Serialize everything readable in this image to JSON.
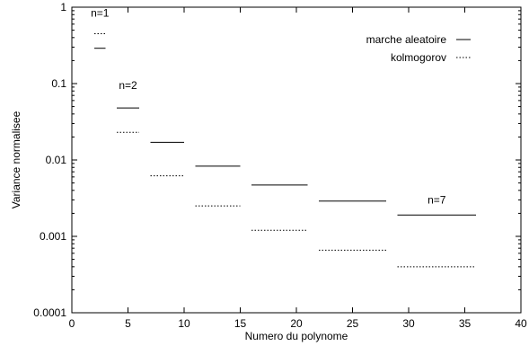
{
  "chart_data": {
    "type": "line",
    "xlabel": "Numero du polynome",
    "ylabel": "Variance normalisee",
    "xlim": [
      0,
      40
    ],
    "ylim": [
      0.0001,
      1
    ],
    "yscale": "log",
    "grid": false,
    "legend_position": "top-right",
    "x_ticks": [
      0,
      5,
      10,
      15,
      20,
      25,
      30,
      35,
      40
    ],
    "x_tick_labels": [
      "0",
      "5",
      "10",
      "15",
      "20",
      "25",
      "30",
      "35",
      "40"
    ],
    "y_ticks": [
      0.0001,
      0.001,
      0.01,
      0.1,
      1
    ],
    "y_tick_labels": [
      "0.0001",
      "0.001",
      "0.01",
      "0.1",
      "1"
    ],
    "series": [
      {
        "name": "marche aleatoire",
        "style": "solid",
        "segments": [
          {
            "x": [
              2,
              3
            ],
            "y": 0.29
          },
          {
            "x": [
              4,
              6
            ],
            "y": 0.048
          },
          {
            "x": [
              7,
              10
            ],
            "y": 0.017
          },
          {
            "x": [
              11,
              15
            ],
            "y": 0.0083
          },
          {
            "x": [
              16,
              21
            ],
            "y": 0.0047
          },
          {
            "x": [
              22,
              28
            ],
            "y": 0.0029
          },
          {
            "x": [
              29,
              36
            ],
            "y": 0.0019
          }
        ]
      },
      {
        "name": "kolmogorov",
        "style": "dotted",
        "segments": [
          {
            "x": [
              2,
              3
            ],
            "y": 0.45
          },
          {
            "x": [
              4,
              6
            ],
            "y": 0.023
          },
          {
            "x": [
              7,
              10
            ],
            "y": 0.0062
          },
          {
            "x": [
              11,
              15
            ],
            "y": 0.0025
          },
          {
            "x": [
              16,
              21
            ],
            "y": 0.0012
          },
          {
            "x": [
              22,
              28
            ],
            "y": 0.00066
          },
          {
            "x": [
              29,
              36
            ],
            "y": 0.0004
          }
        ]
      }
    ],
    "annotations": [
      {
        "text": "n=1",
        "x": 2.5,
        "y": 0.75
      },
      {
        "text": "n=2",
        "x": 5,
        "y": 0.085
      },
      {
        "text": "n=7",
        "x": 32.5,
        "y": 0.0027
      }
    ]
  }
}
